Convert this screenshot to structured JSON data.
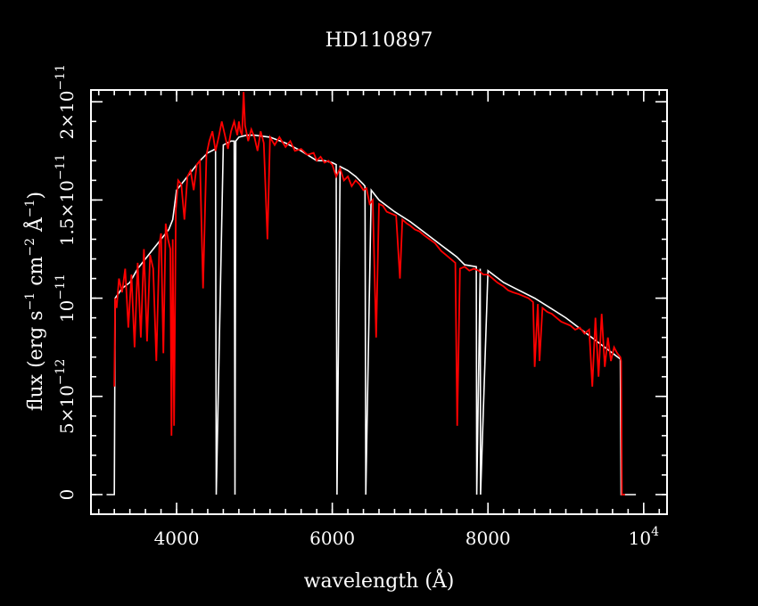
{
  "chart_data": {
    "type": "line",
    "title": "HD110897",
    "xlabel": "wavelength (Å)",
    "ylabel": {
      "p1": "flux (erg s",
      "e1": "−1",
      "p2": " cm",
      "e2": "−2",
      "p3": " Å",
      "e3": "−1",
      "p4": ")"
    },
    "xlim": [
      2900,
      10300
    ],
    "ylim": [
      -1e-12,
      2.06e-11
    ],
    "log_x": false,
    "grid": false,
    "legend": "none",
    "x_ticks": [
      {
        "value": 4000,
        "label": "4000"
      },
      {
        "value": 6000,
        "label": "6000"
      },
      {
        "value": 8000,
        "label": "8000"
      },
      {
        "value": 10000,
        "label": "10",
        "exp": "4"
      }
    ],
    "y_ticks": [
      {
        "value": 0,
        "label": "0"
      },
      {
        "value": 5e-12,
        "label": "5×10",
        "exp": "−12"
      },
      {
        "value": 1e-11,
        "label": "10",
        "exp": "−11"
      },
      {
        "value": 1.5e-11,
        "label": "1.5×10",
        "exp": "−11"
      },
      {
        "value": 2e-11,
        "label": "2×10",
        "exp": "−11"
      }
    ],
    "series": [
      {
        "color": "#ffffff",
        "x": [
          3100,
          3200,
          3210,
          3300,
          3400,
          3500,
          3600,
          3700,
          3800,
          3900,
          3950,
          4000,
          4100,
          4200,
          4300,
          4350,
          4400,
          4450,
          4500,
          4510,
          4600,
          4700,
          4740,
          4750,
          4760,
          4800,
          4900,
          5000,
          5200,
          5400,
          5600,
          5800,
          5900,
          6000,
          6050,
          6060,
          6100,
          6200,
          6300,
          6400,
          6420,
          6430,
          6500,
          6600,
          6800,
          7000,
          7200,
          7400,
          7600,
          7700,
          7850,
          7855,
          7900,
          7905,
          8000,
          8200,
          8400,
          8600,
          8800,
          9000,
          9200,
          9400,
          9600,
          9700,
          9710,
          9800,
          9900
        ],
        "y": [
          0,
          0,
          1e-11,
          1.05e-11,
          1.08e-11,
          1.15e-11,
          1.2e-11,
          1.25e-11,
          1.3e-11,
          1.35e-11,
          1.4e-11,
          1.55e-11,
          1.6e-11,
          1.65e-11,
          1.7e-11,
          1.72e-11,
          1.74e-11,
          1.75e-11,
          1.76e-11,
          0,
          1.78e-11,
          1.8e-11,
          1.8e-11,
          0,
          1.8e-11,
          1.82e-11,
          1.83e-11,
          1.83e-11,
          1.82e-11,
          1.79e-11,
          1.75e-11,
          1.7e-11,
          1.7e-11,
          1.69e-11,
          1.68e-11,
          0,
          1.67e-11,
          1.65e-11,
          1.62e-11,
          1.58e-11,
          1.57e-11,
          0,
          1.55e-11,
          1.5e-11,
          1.44e-11,
          1.39e-11,
          1.33e-11,
          1.27e-11,
          1.21e-11,
          1.17e-11,
          1.16e-11,
          0,
          1.15e-11,
          0,
          1.14e-11,
          1.08e-11,
          1.04e-11,
          1e-11,
          9.5e-12,
          9e-12,
          8.4e-12,
          7.8e-12,
          7.2e-12,
          6.9e-12,
          0,
          0,
          0
        ]
      },
      {
        "color": "#ff0000",
        "x": [
          3200,
          3210,
          3230,
          3260,
          3300,
          3340,
          3380,
          3420,
          3460,
          3500,
          3540,
          3580,
          3620,
          3660,
          3700,
          3740,
          3780,
          3800,
          3830,
          3860,
          3890,
          3920,
          3934,
          3950,
          3968,
          3990,
          4020,
          4060,
          4101,
          4140,
          4180,
          4220,
          4260,
          4300,
          4340,
          4383,
          4420,
          4460,
          4500,
          4540,
          4580,
          4620,
          4660,
          4700,
          4740,
          4780,
          4800,
          4820,
          4840,
          4861,
          4880,
          4920,
          4960,
          5000,
          5040,
          5080,
          5120,
          5167,
          5200,
          5260,
          5320,
          5400,
          5460,
          5520,
          5600,
          5680,
          5760,
          5800,
          5850,
          5900,
          5950,
          6000,
          6050,
          6100,
          6150,
          6200,
          6250,
          6300,
          6350,
          6400,
          6440,
          6480,
          6520,
          6563,
          6600,
          6650,
          6700,
          6760,
          6820,
          6869,
          6900,
          6960,
          7000,
          7060,
          7120,
          7180,
          7250,
          7320,
          7400,
          7460,
          7520,
          7580,
          7605,
          7640,
          7700,
          7760,
          7820,
          7880,
          7940,
          8000,
          8060,
          8120,
          8200,
          8260,
          8320,
          8400,
          8460,
          8520,
          8580,
          8600,
          8640,
          8662,
          8700,
          8760,
          8820,
          8880,
          8940,
          9000,
          9060,
          9120,
          9180,
          9240,
          9300,
          9340,
          9380,
          9420,
          9460,
          9500,
          9540,
          9580,
          9620,
          9660,
          9700,
          9710,
          9720,
          9760
        ],
        "y": [
          5.5e-12,
          1e-11,
          9.5e-12,
          1.1e-11,
          1.03e-11,
          1.15e-11,
          8.5e-12,
          1.12e-11,
          7.5e-12,
          1.18e-11,
          8e-12,
          1.25e-11,
          7.8e-12,
          1.22e-11,
          1.15e-11,
          6.8e-12,
          1.28e-11,
          1.33e-11,
          7.2e-12,
          1.38e-11,
          1.3e-11,
          1.25e-11,
          3e-12,
          1.3e-11,
          3.5e-12,
          1.45e-11,
          1.6e-11,
          1.58e-11,
          1.4e-11,
          1.62e-11,
          1.65e-11,
          1.55e-11,
          1.68e-11,
          1.7e-11,
          1.05e-11,
          1.73e-11,
          1.8e-11,
          1.85e-11,
          1.75e-11,
          1.82e-11,
          1.9e-11,
          1.83e-11,
          1.76e-11,
          1.85e-11,
          1.9e-11,
          1.83e-11,
          1.9e-11,
          1.85e-11,
          1.83e-11,
          2.05e-11,
          1.88e-11,
          1.8e-11,
          1.86e-11,
          1.82e-11,
          1.75e-11,
          1.85e-11,
          1.79e-11,
          1.3e-11,
          1.82e-11,
          1.78e-11,
          1.82e-11,
          1.77e-11,
          1.8e-11,
          1.75e-11,
          1.76e-11,
          1.73e-11,
          1.74e-11,
          1.7e-11,
          1.72e-11,
          1.69e-11,
          1.7e-11,
          1.68e-11,
          1.62e-11,
          1.66e-11,
          1.6e-11,
          1.62e-11,
          1.57e-11,
          1.6e-11,
          1.58e-11,
          1.55e-11,
          1.56e-11,
          1.48e-11,
          1.5e-11,
          8e-12,
          1.48e-11,
          1.47e-11,
          1.44e-11,
          1.43e-11,
          1.42e-11,
          1.1e-11,
          1.4e-11,
          1.38e-11,
          1.37e-11,
          1.35e-11,
          1.34e-11,
          1.32e-11,
          1.3e-11,
          1.28e-11,
          1.24e-11,
          1.22e-11,
          1.2e-11,
          1.18e-11,
          3.5e-12,
          1.15e-11,
          1.16e-11,
          1.14e-11,
          1.15e-11,
          1.14e-11,
          1.12e-11,
          1.12e-11,
          1.1e-11,
          1.08e-11,
          1.06e-11,
          1.04e-11,
          1.03e-11,
          1.02e-11,
          1.01e-11,
          1e-11,
          9.8e-12,
          6.5e-12,
          9.7e-12,
          6.8e-12,
          9.5e-12,
          9.3e-12,
          9.2e-12,
          9e-12,
          8.8e-12,
          8.7e-12,
          8.6e-12,
          8.4e-12,
          8.5e-12,
          8.2e-12,
          8.4e-12,
          5.5e-12,
          9e-12,
          6e-12,
          9.2e-12,
          6.5e-12,
          8e-12,
          6.8e-12,
          7.5e-12,
          7.2e-12,
          7e-12,
          6.8e-12,
          0,
          0
        ]
      }
    ]
  }
}
